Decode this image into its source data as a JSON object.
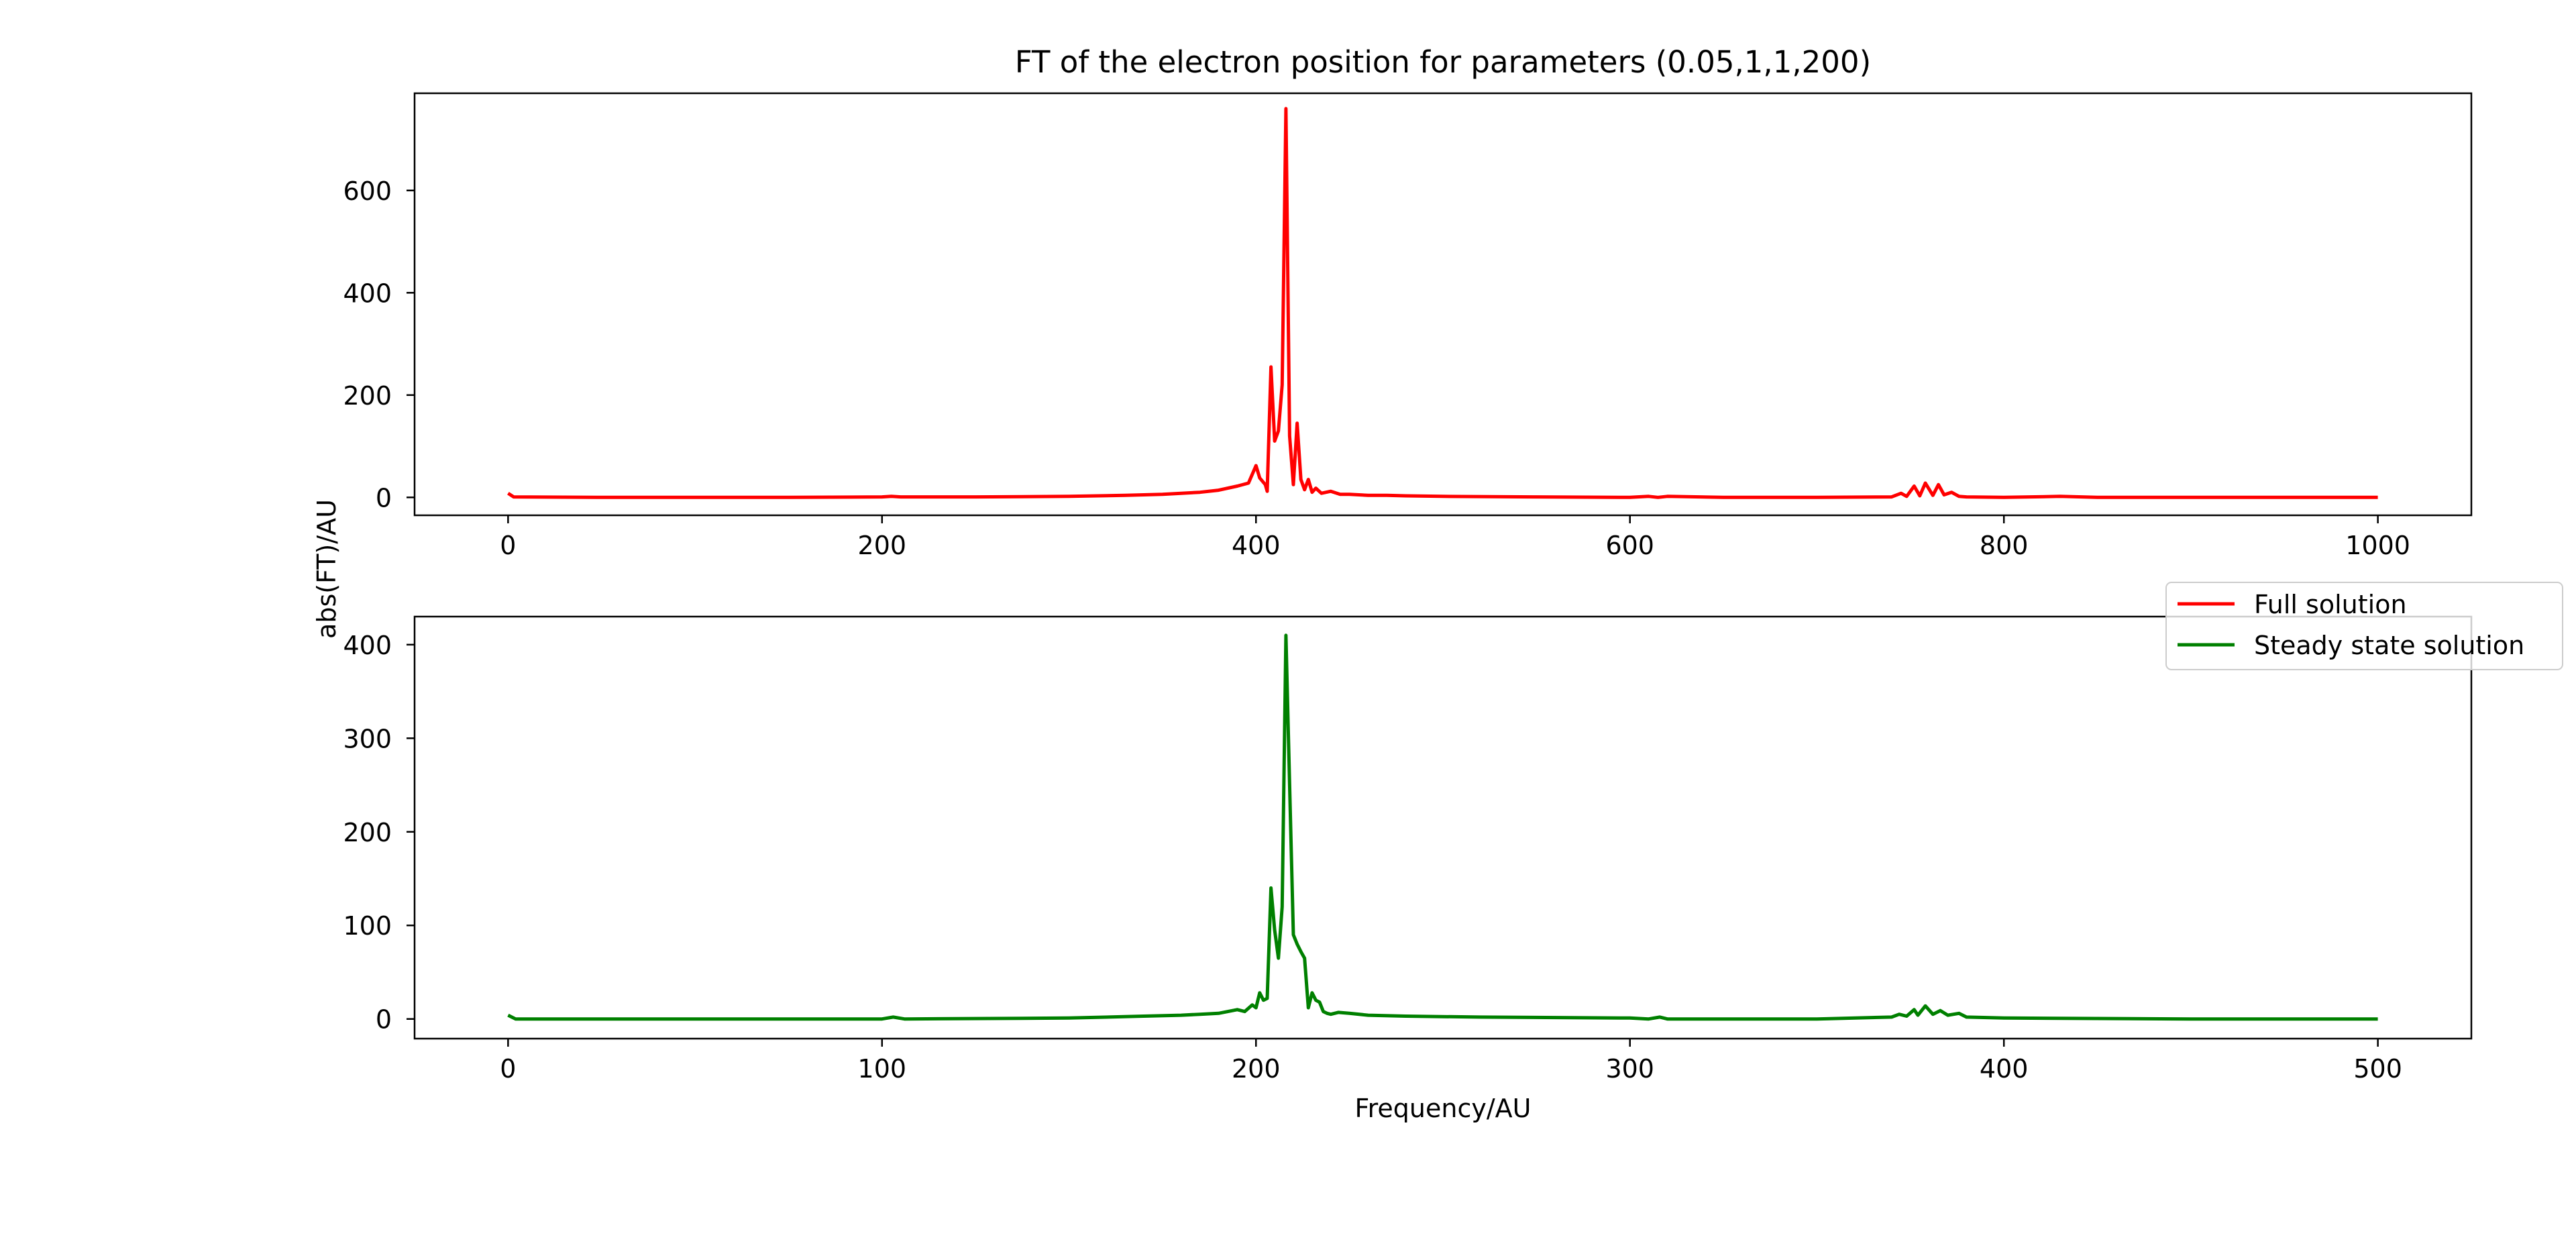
{
  "figure": {
    "title": "FT of the electron position for parameters (0.05,1,1,200)",
    "ylabel": "abs(FT)/AU",
    "xlabel": "Frequency/AU"
  },
  "legend": {
    "placement": "right, between panels",
    "entries": [
      {
        "label": "Full solution",
        "color": "#ff0000"
      },
      {
        "label": "Steady state solution",
        "color": "#008000"
      }
    ]
  },
  "chart_data": [
    {
      "type": "line",
      "panel": "top",
      "xlim": [
        -50,
        1050
      ],
      "ylim": [
        -35,
        790
      ],
      "xticks": [
        0,
        200,
        400,
        600,
        800,
        1000
      ],
      "yticks": [
        0,
        200,
        400,
        600
      ],
      "grid": false,
      "series": [
        {
          "name": "Full solution",
          "color": "#ff0000",
          "points": [
            [
              0,
              8
            ],
            [
              3,
              1
            ],
            [
              50,
              0
            ],
            [
              100,
              0
            ],
            [
              150,
              0
            ],
            [
              200,
              1
            ],
            [
              205,
              2
            ],
            [
              210,
              1
            ],
            [
              250,
              1
            ],
            [
              300,
              2
            ],
            [
              330,
              4
            ],
            [
              350,
              6
            ],
            [
              370,
              10
            ],
            [
              380,
              14
            ],
            [
              390,
              22
            ],
            [
              396,
              28
            ],
            [
              400,
              62
            ],
            [
              402,
              38
            ],
            [
              405,
              25
            ],
            [
              406,
              12
            ],
            [
              408,
              255
            ],
            [
              410,
              110
            ],
            [
              412,
              130
            ],
            [
              414,
              220
            ],
            [
              416,
              760
            ],
            [
              418,
              120
            ],
            [
              420,
              25
            ],
            [
              422,
              145
            ],
            [
              424,
              35
            ],
            [
              426,
              15
            ],
            [
              428,
              35
            ],
            [
              430,
              10
            ],
            [
              432,
              18
            ],
            [
              435,
              8
            ],
            [
              440,
              12
            ],
            [
              445,
              6
            ],
            [
              450,
              6
            ],
            [
              460,
              4
            ],
            [
              470,
              4
            ],
            [
              480,
              3
            ],
            [
              500,
              2
            ],
            [
              550,
              1
            ],
            [
              600,
              0
            ],
            [
              610,
              2
            ],
            [
              615,
              0
            ],
            [
              620,
              2
            ],
            [
              650,
              0
            ],
            [
              700,
              0
            ],
            [
              740,
              1
            ],
            [
              745,
              8
            ],
            [
              748,
              2
            ],
            [
              752,
              22
            ],
            [
              755,
              3
            ],
            [
              758,
              28
            ],
            [
              762,
              4
            ],
            [
              765,
              25
            ],
            [
              768,
              5
            ],
            [
              772,
              10
            ],
            [
              776,
              2
            ],
            [
              780,
              1
            ],
            [
              800,
              0
            ],
            [
              830,
              2
            ],
            [
              850,
              0
            ],
            [
              900,
              0
            ],
            [
              950,
              0
            ],
            [
              1000,
              0
            ]
          ]
        }
      ]
    },
    {
      "type": "line",
      "panel": "bottom",
      "xlim": [
        -25,
        525
      ],
      "ylim": [
        -21,
        430
      ],
      "xticks": [
        0,
        100,
        200,
        300,
        400,
        500
      ],
      "yticks": [
        0,
        100,
        200,
        300,
        400
      ],
      "grid": false,
      "series": [
        {
          "name": "Steady state solution",
          "color": "#008000",
          "points": [
            [
              0,
              4
            ],
            [
              2,
              0
            ],
            [
              50,
              0
            ],
            [
              100,
              0
            ],
            [
              103,
              2
            ],
            [
              106,
              0
            ],
            [
              150,
              1
            ],
            [
              170,
              3
            ],
            [
              180,
              4
            ],
            [
              185,
              5
            ],
            [
              190,
              6
            ],
            [
              195,
              10
            ],
            [
              197,
              8
            ],
            [
              199,
              15
            ],
            [
              200,
              12
            ],
            [
              201,
              28
            ],
            [
              202,
              20
            ],
            [
              203,
              22
            ],
            [
              204,
              140
            ],
            [
              205,
              95
            ],
            [
              206,
              65
            ],
            [
              207,
              120
            ],
            [
              208,
              410
            ],
            [
              209,
              250
            ],
            [
              210,
              90
            ],
            [
              211,
              80
            ],
            [
              212,
              72
            ],
            [
              213,
              65
            ],
            [
              214,
              12
            ],
            [
              215,
              28
            ],
            [
              216,
              20
            ],
            [
              217,
              18
            ],
            [
              218,
              8
            ],
            [
              219,
              6
            ],
            [
              220,
              5
            ],
            [
              222,
              7
            ],
            [
              225,
              6
            ],
            [
              230,
              4
            ],
            [
              240,
              3
            ],
            [
              260,
              2
            ],
            [
              300,
              1
            ],
            [
              305,
              0
            ],
            [
              308,
              2
            ],
            [
              310,
              0
            ],
            [
              350,
              0
            ],
            [
              370,
              2
            ],
            [
              372,
              5
            ],
            [
              374,
              3
            ],
            [
              376,
              10
            ],
            [
              377,
              4
            ],
            [
              379,
              14
            ],
            [
              381,
              5
            ],
            [
              383,
              9
            ],
            [
              385,
              4
            ],
            [
              388,
              6
            ],
            [
              390,
              2
            ],
            [
              400,
              1
            ],
            [
              450,
              0
            ],
            [
              500,
              0
            ]
          ]
        }
      ]
    }
  ]
}
